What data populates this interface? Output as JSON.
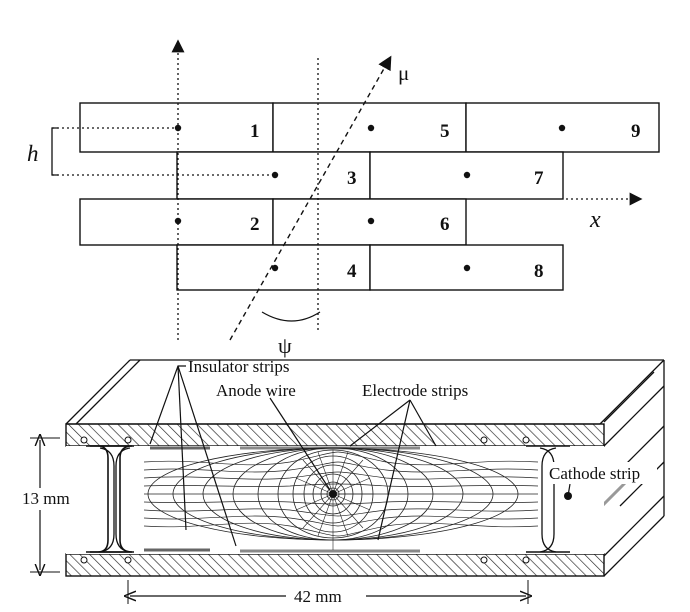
{
  "top_diagram": {
    "cells": [
      "1",
      "2",
      "3",
      "4",
      "5",
      "6",
      "7",
      "8",
      "9"
    ],
    "h_label": "h",
    "x_label": "x",
    "mu_label": "μ",
    "psi_label": "ψ"
  },
  "bottom_diagram": {
    "insulator_label": "Insulator strips",
    "anode_label": "Anode wire",
    "electrode_label": "Electrode strips",
    "cathode_label": "Cathode strip",
    "height_label": "13 mm",
    "width_label": "42 mm"
  }
}
